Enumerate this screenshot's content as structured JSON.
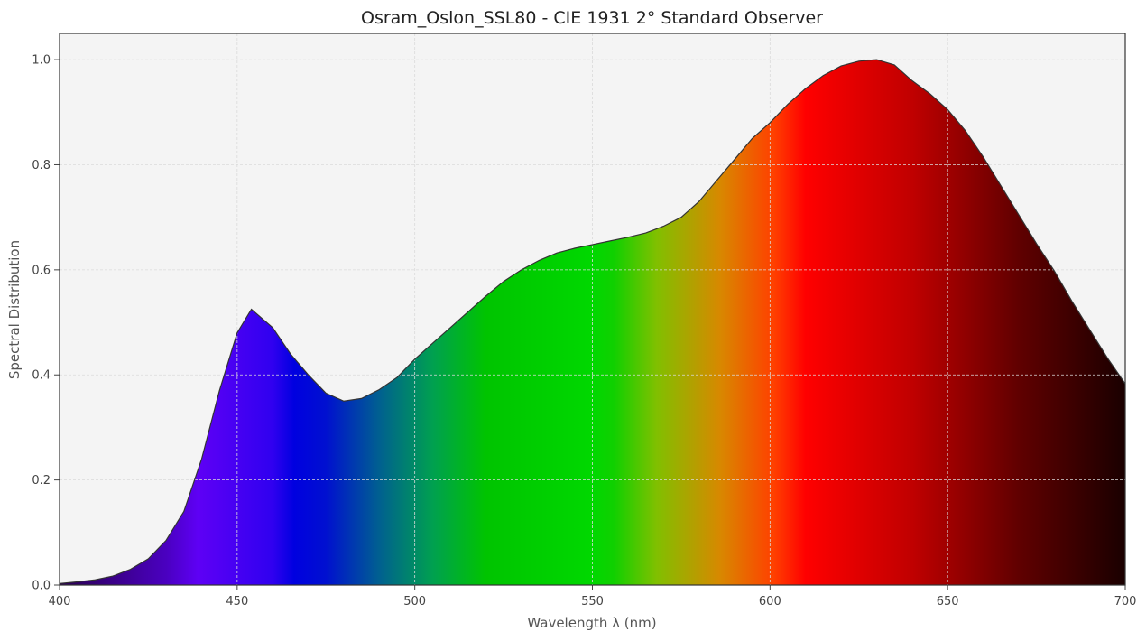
{
  "chart_data": {
    "type": "area",
    "title": "Osram_Oslon_SSL80 - CIE 1931 2° Standard Observer",
    "x_label": "Wavelength λ (nm)",
    "y_label": "Spectral Distribution",
    "x": [
      400,
      405,
      410,
      415,
      420,
      425,
      430,
      435,
      440,
      445,
      450,
      454,
      460,
      465,
      470,
      475,
      480,
      485,
      490,
      495,
      500,
      505,
      510,
      515,
      520,
      525,
      530,
      535,
      540,
      545,
      550,
      555,
      560,
      565,
      570,
      575,
      580,
      585,
      590,
      595,
      600,
      605,
      610,
      615,
      620,
      625,
      630,
      635,
      640,
      645,
      650,
      655,
      660,
      665,
      670,
      675,
      680,
      685,
      690,
      695,
      700
    ],
    "values": [
      0.003,
      0.006,
      0.01,
      0.017,
      0.03,
      0.05,
      0.085,
      0.14,
      0.24,
      0.37,
      0.48,
      0.525,
      0.49,
      0.44,
      0.4,
      0.365,
      0.35,
      0.355,
      0.372,
      0.395,
      0.43,
      0.46,
      0.49,
      0.52,
      0.55,
      0.578,
      0.6,
      0.618,
      0.632,
      0.641,
      0.648,
      0.655,
      0.662,
      0.67,
      0.683,
      0.7,
      0.73,
      0.77,
      0.81,
      0.85,
      0.88,
      0.915,
      0.945,
      0.97,
      0.988,
      0.997,
      1.0,
      0.99,
      0.96,
      0.935,
      0.905,
      0.865,
      0.815,
      0.76,
      0.705,
      0.65,
      0.598,
      0.54,
      0.486,
      0.432,
      0.383
    ],
    "line_color": "#333333",
    "background": "#f4f4f4",
    "xlim": [
      400,
      700
    ],
    "xticks": [
      400,
      450,
      500,
      550,
      600,
      650,
      700
    ],
    "ylim": [
      0,
      1.05
    ],
    "yticks": [
      {
        "value": 0,
        "label": "0.0"
      },
      {
        "value": 0.2,
        "label": "0.2"
      },
      {
        "value": 0.4,
        "label": "0.4"
      },
      {
        "value": 0.6,
        "label": "0.6"
      },
      {
        "value": 0.8,
        "label": "0.8"
      },
      {
        "value": 1.0,
        "label": "1.0"
      }
    ],
    "grid": true
  }
}
